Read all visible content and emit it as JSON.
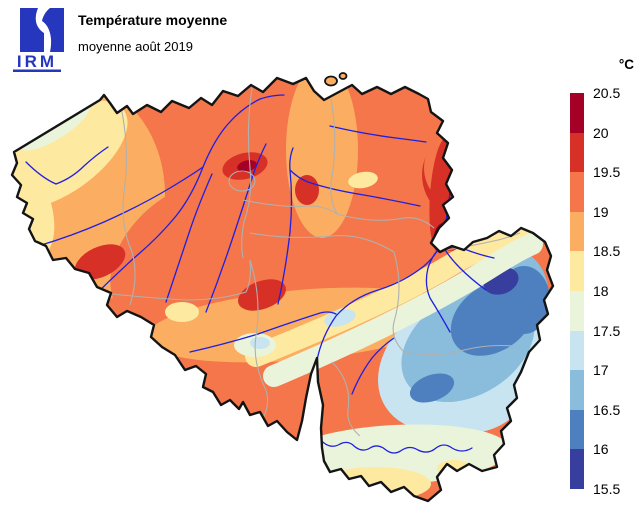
{
  "header": {
    "title": "Température moyenne",
    "subtitle": "moyenne août 2019"
  },
  "logo": {
    "text": "IRM",
    "color": "#2636bd"
  },
  "colorbar": {
    "unit": "°C",
    "ticks_top_to_bottom": [
      "20.5",
      "20",
      "19.5",
      "19",
      "18.5",
      "18",
      "17.5",
      "17",
      "16.5",
      "16",
      "15.5"
    ]
  },
  "palette": {
    "description": "temperature classes in °C, low to high",
    "breaks_low_to_high": [
      15.5,
      16,
      16.5,
      17,
      17.5,
      18,
      18.5,
      19,
      19.5,
      20,
      20.5
    ],
    "colors_low_to_high": [
      "#373e9d",
      "#4e80bf",
      "#8abcdb",
      "#c8e4f0",
      "#eaf4da",
      "#fde99f",
      "#fbae62",
      "#f4764a",
      "#d73027",
      "#a50026"
    ]
  },
  "map_colors": {
    "border": "#141414",
    "province": "#b0b0b0",
    "river": "#2020e0",
    "background": "#ffffff"
  }
}
